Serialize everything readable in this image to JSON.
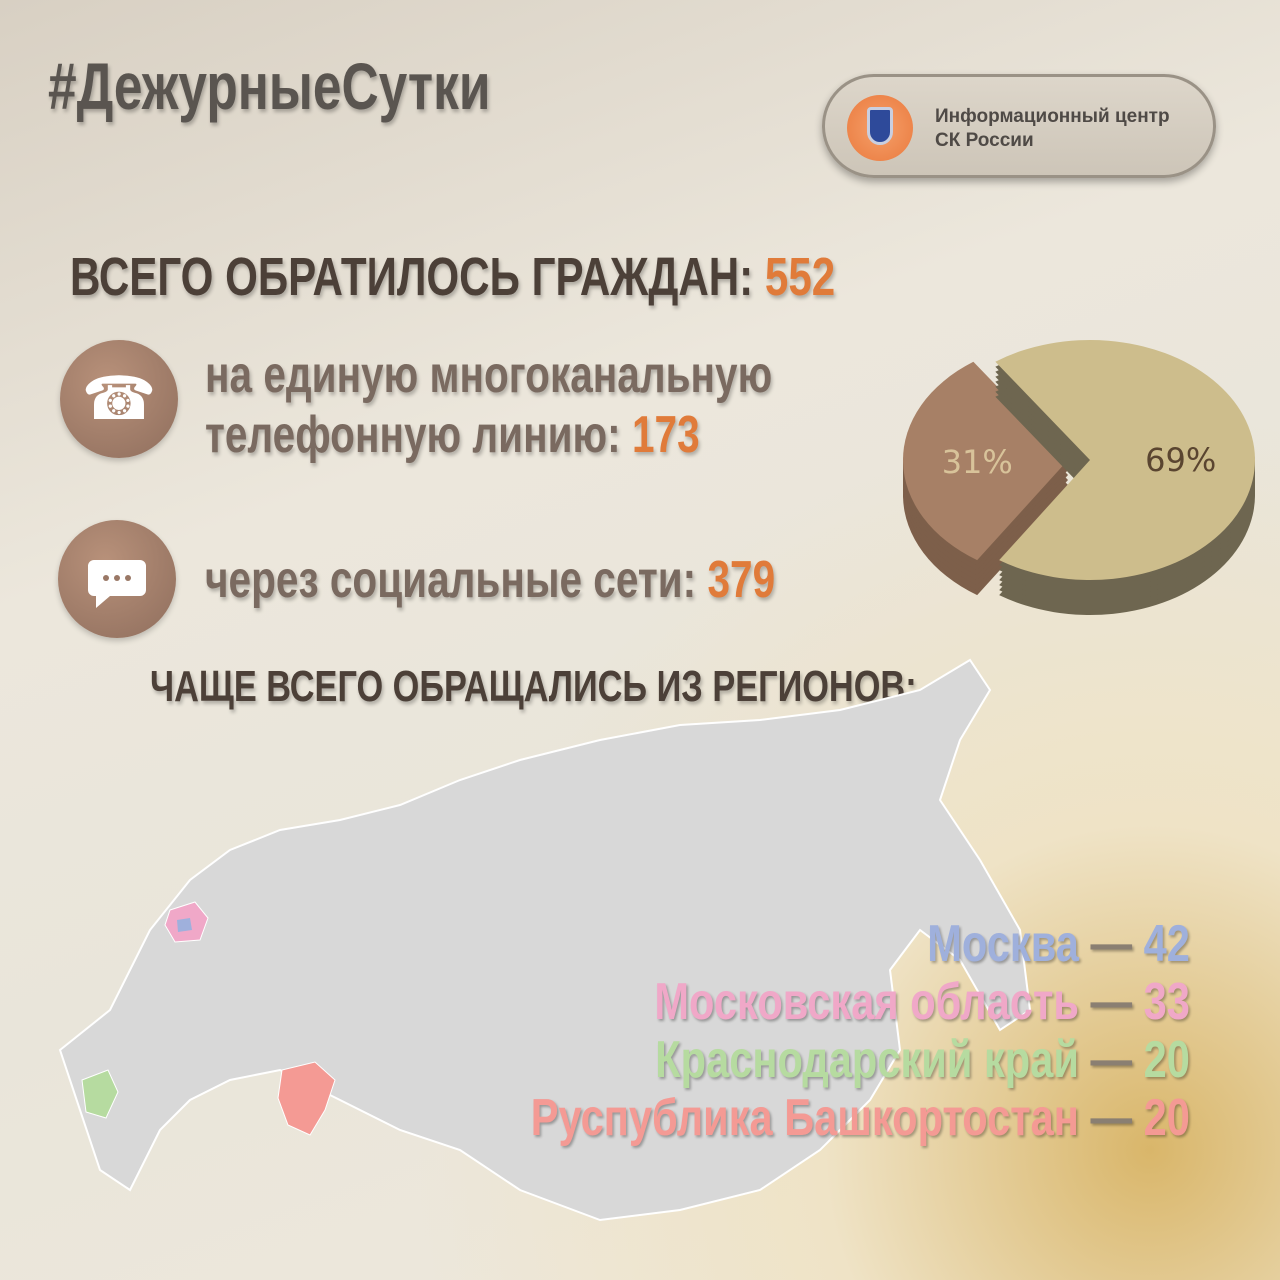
{
  "header": {
    "hashtag": "#ДежурныеСутки",
    "badge_line1": "Информационный центр",
    "badge_line2": "СК России",
    "emblem_icon": "sk-russia-emblem"
  },
  "total": {
    "label": "ВСЕГО ОБРАТИЛОСЬ ГРАЖДАН: ",
    "value": "552"
  },
  "phone": {
    "icon": "phone-icon",
    "line1": "на единую многоканальную",
    "line2": "телефонную линию: ",
    "value": "173"
  },
  "social": {
    "icon": "chat-icon",
    "label": "через социальные сети: ",
    "value": "379"
  },
  "regions_title": "ЧАЩЕ ВСЕГО ОБРАЩАЛИСЬ ИЗ РЕГИОНОВ:",
  "regions": [
    {
      "name": "Москва",
      "sep": " — ",
      "value": "42",
      "color": "#9fb0dc"
    },
    {
      "name": "Московская область",
      "sep": " — ",
      "value": "33",
      "color": "#f0a8c8"
    },
    {
      "name": "Краснодарский край",
      "sep": " — ",
      "value": "20",
      "color": "#b6dba0"
    },
    {
      "name": "Руспублика Башкортостан",
      "sep": " — ",
      "value": "20",
      "color": "#f49a94"
    }
  ],
  "colors": {
    "accent": "#e07b3a",
    "map": "#d6d6d6"
  },
  "chart_data": {
    "type": "pie",
    "values": [
      31,
      69
    ],
    "labels": [
      "31%",
      "69%"
    ],
    "colors": [
      "#a78066",
      "#cdbd8c"
    ],
    "style": "3d-exploded"
  }
}
